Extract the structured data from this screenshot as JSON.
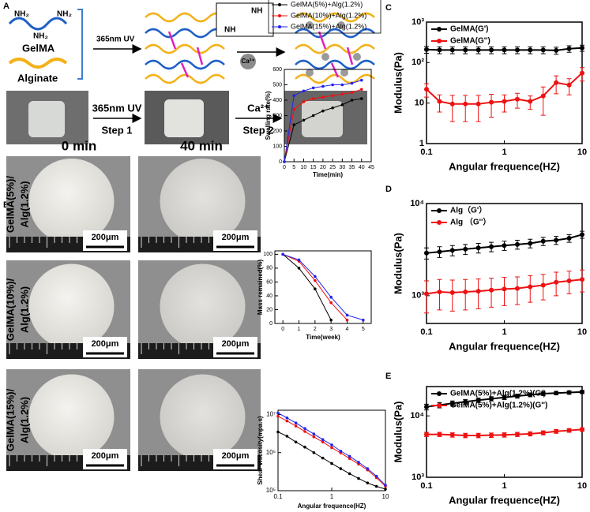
{
  "figure": {
    "panels": [
      "A",
      "B",
      "C",
      "D",
      "E"
    ],
    "scheme": {
      "nh2": [
        "NH₂",
        "NH₂",
        "NH₂"
      ],
      "gelma": "GelMA",
      "alginate": "Alginate",
      "uv": "365nm UV",
      "ca": "Ca²⁺",
      "nh": [
        "NH",
        "NH"
      ]
    },
    "steps": [
      {
        "top": "365nm UV",
        "bottom": "Step 1"
      },
      {
        "top": "Ca²⁺",
        "bottom": "Step 2"
      }
    ],
    "columns": [
      "0 min",
      "40 min"
    ],
    "rows": [
      [
        "GelMA(5%)/",
        "Alg(1.2%)"
      ],
      [
        "GelMA(10%)/",
        "Alg(1.2%)"
      ],
      [
        "GelMA(15%)/",
        "Alg(1.2%)"
      ]
    ],
    "scale_bar": "200μm"
  },
  "chart_data": [
    {
      "type": "line",
      "xlabel": "Angular frequence(HZ)",
      "ylabel": "Modulus(Pa)",
      "xlog": true,
      "ylog": true,
      "legend": "upper left",
      "xlim": [
        0.1,
        10
      ],
      "xticks": [
        0.1,
        1,
        10
      ],
      "ylim": [
        1,
        1000
      ],
      "yticks": [
        1,
        10,
        {
          "value": 100,
          "label": "10²"
        },
        {
          "value": 1000,
          "label": "10³"
        }
      ],
      "x": [
        0.1,
        0.147,
        0.215,
        0.316,
        0.464,
        0.681,
        1,
        1.47,
        2.15,
        3.16,
        4.64,
        6.81,
        10
      ],
      "series": [
        {
          "name": "GelMA(G')",
          "color": "#000000",
          "values": [
            210,
            205,
            205,
            205,
            205,
            205,
            205,
            205,
            205,
            205,
            200,
            220,
            230
          ],
          "errors": [
            40,
            40,
            40,
            40,
            40,
            40,
            40,
            40,
            40,
            40,
            40,
            40,
            40
          ]
        },
        {
          "name": "GelMA(G'')",
          "color": "#ee1111",
          "values": [
            22,
            11,
            9.5,
            9.5,
            9.5,
            10.5,
            11,
            12.5,
            11,
            15,
            32,
            28,
            55
          ],
          "errors": [
            8,
            5,
            6,
            6,
            6,
            6,
            5,
            5,
            4,
            10,
            15,
            12,
            20
          ]
        }
      ]
    },
    {
      "type": "line",
      "xlabel": "Angular frequence(HZ)",
      "ylabel": "Modulus(Pa)",
      "xlog": true,
      "ylog": true,
      "legend": "upper left",
      "xlim": [
        0.1,
        10
      ],
      "xticks": [
        0.1,
        1,
        10
      ],
      "ylim": [
        500,
        10000
      ],
      "yticks": [
        {
          "value": 1000,
          "label": "10³"
        },
        {
          "value": 10000,
          "label": "10⁴"
        }
      ],
      "x": [
        0.1,
        0.147,
        0.215,
        0.316,
        0.464,
        0.681,
        1,
        1.47,
        2.15,
        3.16,
        4.64,
        6.81,
        10
      ],
      "series": [
        {
          "name": "Alg（G'）",
          "color": "#000000",
          "values": [
            2900,
            3000,
            3100,
            3200,
            3300,
            3400,
            3500,
            3600,
            3700,
            3900,
            4000,
            4200,
            4600
          ],
          "errors": [
            400,
            400,
            400,
            400,
            400,
            400,
            400,
            400,
            400,
            400,
            400,
            400,
            400
          ]
        },
        {
          "name": "Alg （G''）",
          "color": "#ee1111",
          "values": [
            1050,
            1100,
            1080,
            1100,
            1120,
            1150,
            1180,
            1200,
            1250,
            1300,
            1400,
            1450,
            1500
          ],
          "errors": [
            400,
            400,
            400,
            400,
            400,
            400,
            400,
            400,
            400,
            400,
            400,
            400,
            400
          ]
        }
      ]
    },
    {
      "type": "line",
      "xlabel": "Angular frequence(HZ)",
      "ylabel": "Modulus(Pa)",
      "xlog": true,
      "ylog": true,
      "legend": "upper left",
      "xlim": [
        0.1,
        10
      ],
      "xticks": [
        0.1,
        1,
        10
      ],
      "ylim": [
        1000,
        30000
      ],
      "yticks": [
        {
          "value": 1000,
          "label": "10³"
        },
        {
          "value": 10000,
          "label": "10⁴"
        }
      ],
      "x": [
        0.1,
        0.147,
        0.215,
        0.316,
        0.464,
        0.681,
        1,
        1.47,
        2.15,
        3.16,
        4.64,
        6.81,
        10
      ],
      "series": [
        {
          "name": "GelMA(5%)+Alg(1.2%)(G')",
          "color": "#000000",
          "values": [
            14000,
            15000,
            16000,
            17000,
            18000,
            19000,
            20000,
            21000,
            22000,
            23000,
            23500,
            24000,
            24500
          ],
          "errors": [
            1500,
            1500,
            1500,
            1500,
            1500,
            1500,
            1500,
            1500,
            1500,
            1500,
            1500,
            1500,
            1500
          ]
        },
        {
          "name": "GelMA(5%)+Alg(1.2%)(G'')",
          "color": "#ee1111",
          "values": [
            5000,
            5000,
            4900,
            4800,
            4800,
            4850,
            4900,
            5000,
            5100,
            5300,
            5600,
            5800,
            6000
          ],
          "errors": [
            400,
            400,
            400,
            400,
            400,
            400,
            400,
            400,
            400,
            400,
            400,
            400,
            400
          ]
        }
      ]
    },
    {
      "type": "line",
      "xlabel": "Time(min)",
      "ylabel": "Swelling rate(%)",
      "legend": "above",
      "xlim": [
        0,
        45
      ],
      "xticks": [
        0,
        5,
        10,
        15,
        20,
        25,
        30,
        35,
        40,
        45
      ],
      "ylim": [
        0,
        600
      ],
      "yticks": [
        0,
        100,
        200,
        300,
        400,
        500,
        600
      ],
      "x": [
        0,
        5,
        10,
        15,
        20,
        25,
        30,
        35,
        40
      ],
      "series": [
        {
          "name": "GelMA(5%)+Alg(1.2%)",
          "color": "#000000",
          "values": [
            0,
            240,
            270,
            300,
            330,
            350,
            370,
            400,
            410
          ]
        },
        {
          "name": "GelMA(10%)+Alg(1.2%)",
          "color": "#ee1111",
          "values": [
            0,
            340,
            390,
            410,
            420,
            430,
            440,
            450,
            470
          ]
        },
        {
          "name": "GelMA(15%)+Alg(1.2%)",
          "color": "#2222ee",
          "values": [
            0,
            430,
            460,
            480,
            490,
            500,
            500,
            510,
            530
          ]
        }
      ]
    },
    {
      "type": "line",
      "xlabel": "Time(week)",
      "ylabel": "Mass remained(%)",
      "xlim": [
        -0.5,
        5.5
      ],
      "xticks": [
        0,
        1,
        2,
        3,
        4,
        5
      ],
      "ylim": [
        0,
        105
      ],
      "yticks": [
        0,
        20,
        40,
        60,
        80,
        100
      ],
      "x": [
        0,
        1,
        2,
        3,
        4,
        5
      ],
      "series": [
        {
          "color": "#000000",
          "values": [
            100,
            80,
            50,
            5,
            null,
            null
          ]
        },
        {
          "color": "#ee1111",
          "values": [
            100,
            90,
            62,
            30,
            5,
            null
          ]
        },
        {
          "color": "#2222ee",
          "values": [
            100,
            92,
            68,
            38,
            12,
            5
          ]
        }
      ]
    },
    {
      "type": "line",
      "xlabel": "Angular frequence(HZ)",
      "ylabel": "Shear viscosity(mpa.s)",
      "xlog": true,
      "ylog": true,
      "xlim": [
        0.1,
        10
      ],
      "xticks": [
        0.1,
        1,
        10
      ],
      "ylim": [
        100000,
        13000000
      ],
      "yticks": [
        {
          "value": 100000,
          "label": "10⁵"
        },
        {
          "value": 1000000,
          "label": "10⁶"
        },
        {
          "value": 10000000,
          "label": "10⁷"
        }
      ],
      "x": [
        0.1,
        0.147,
        0.215,
        0.316,
        0.464,
        0.681,
        1,
        1.47,
        2.15,
        3.16,
        4.64,
        6.81,
        10
      ],
      "series": [
        {
          "color": "#000000",
          "values": [
            3500000,
            2700000,
            1900000,
            1400000,
            1000000,
            720000,
            520000,
            380000,
            280000,
            210000,
            160000,
            130000,
            110000
          ]
        },
        {
          "color": "#ee1111",
          "values": [
            9000000,
            6800000,
            5000000,
            3600000,
            2600000,
            1900000,
            1350000,
            980000,
            700000,
            500000,
            350000,
            220000,
            130000
          ]
        },
        {
          "color": "#2222ee",
          "values": [
            11000000,
            8200000,
            6000000,
            4300000,
            3100000,
            2200000,
            1600000,
            1100000,
            800000,
            560000,
            380000,
            240000,
            140000
          ]
        }
      ]
    }
  ]
}
